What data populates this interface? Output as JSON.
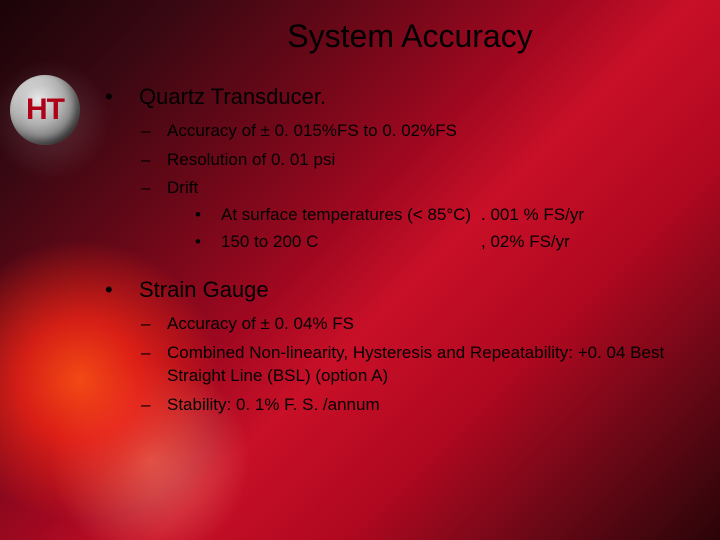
{
  "logo": "HT",
  "title": "System Accuracy",
  "sections": [
    {
      "heading": "Quartz Transducer.",
      "items": [
        {
          "text": "Accuracy of ± 0. 015%FS to 0. 02%FS"
        },
        {
          "text": "Resolution of 0. 01 psi"
        },
        {
          "text": "Drift",
          "sub": [
            {
              "label": "At surface temperatures (< 85°C)",
              "value": ". 001 % FS/yr"
            },
            {
              "label": "150 to 200 C",
              "value": ", 02% FS/yr"
            }
          ]
        }
      ]
    },
    {
      "heading": "Strain Gauge",
      "items": [
        {
          "text": "Accuracy of ± 0. 04% FS"
        },
        {
          "text": "Combined Non-linearity, Hysteresis and Repeatability: +0. 04 Best Straight Line (BSL) (option A)"
        },
        {
          "text": "Stability: 0. 1% F. S. /annum"
        }
      ]
    }
  ],
  "style": {
    "title_fontsize": 32,
    "heading_fontsize": 22,
    "body_fontsize": 17,
    "text_color": "#000000",
    "logo_fg": "#b00018",
    "bg_gradient_stops": [
      "#1a0408",
      "#3a0812",
      "#6a0818",
      "#a00820",
      "#c81028",
      "#b00820",
      "#6a0816",
      "#2a0408"
    ]
  }
}
